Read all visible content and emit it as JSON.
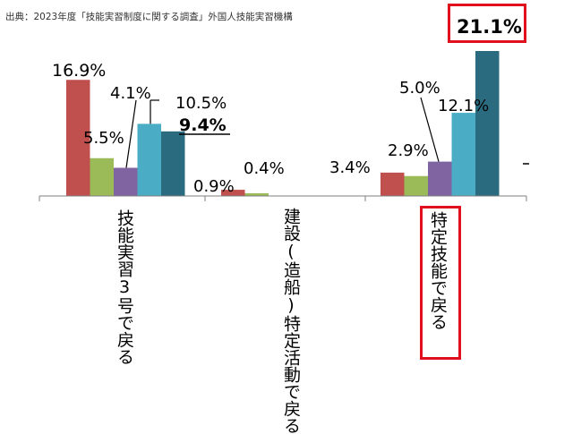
{
  "source_note": "出典：2023年度「技能実習制度に関する調査」外国人技能実習機構",
  "chart_data": {
    "type": "bar",
    "title": "",
    "xlabel": "",
    "ylabel": "",
    "categories": [
      "技能実習3号で戻る",
      "建設(造船)特定活動で戻る",
      "特定技能で戻る"
    ],
    "ylim": [
      0,
      25
    ],
    "grid": false,
    "legend": "none",
    "series": [
      {
        "color": "#c0504d",
        "values": [
          16.9,
          0.9,
          3.4
        ]
      },
      {
        "color": "#9bbb59",
        "values": [
          5.5,
          0.4,
          2.9
        ]
      },
      {
        "color": "#8064a2",
        "values": [
          4.1,
          null,
          5.0
        ]
      },
      {
        "color": "#4bacc6",
        "values": [
          10.5,
          null,
          12.1
        ]
      },
      {
        "color": "#2b6b80",
        "values": [
          9.4,
          null,
          21.1
        ]
      }
    ],
    "labels": [
      [
        "16.9%",
        "0.9%",
        "3.4%"
      ],
      [
        "5.5%",
        "0.4%",
        "2.9%"
      ],
      [
        "4.1%",
        "",
        "5.0%"
      ],
      [
        "10.5%",
        "",
        "12.1%"
      ],
      [
        "9.4%",
        "",
        "21.1%"
      ]
    ]
  }
}
